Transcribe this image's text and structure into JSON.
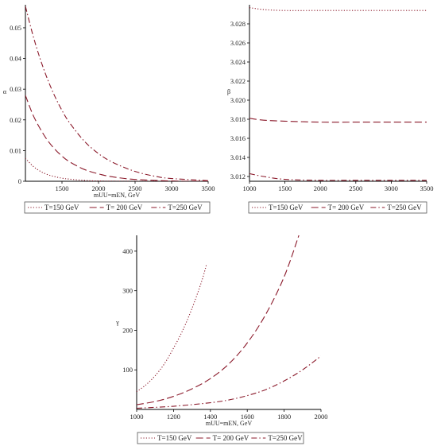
{
  "colors": {
    "curve": "#8b1a2b",
    "axis": "#000000",
    "legend_border": "#555555"
  },
  "legend_entries": [
    "T=150 GeV",
    "T= 200 GeV",
    "T=250 GeV"
  ],
  "chart_data": [
    {
      "type": "line",
      "xlabel": "mUU=mEN, GeV",
      "ylabel": "α",
      "xlim": [
        1000,
        3500
      ],
      "ylim": [
        0,
        0.0575
      ],
      "xticks": [
        1500,
        2000,
        2500,
        3000,
        3500
      ],
      "yticks": [
        0,
        0.01,
        0.02,
        0.03,
        0.04,
        0.05
      ],
      "yticklabels": [
        "0",
        "0.01",
        "0.02",
        "0.03",
        "0.04",
        "0.05"
      ],
      "legend_position": "below",
      "series": [
        {
          "name": "T=150 GeV",
          "style": "dotted",
          "x": [
            1000,
            1100,
            1200,
            1300,
            1400,
            1500,
            1600,
            1800,
            2000,
            2500,
            3000,
            3500
          ],
          "y": [
            0.0075,
            0.005,
            0.0033,
            0.0022,
            0.0015,
            0.001,
            0.0007,
            0.0003,
            0.0001,
            0.0,
            0.0,
            0.0
          ]
        },
        {
          "name": "T= 200 GeV",
          "style": "dashed",
          "x": [
            1000,
            1100,
            1200,
            1300,
            1400,
            1500,
            1600,
            1800,
            2000,
            2200,
            2500,
            3000,
            3500
          ],
          "y": [
            0.028,
            0.0218,
            0.0172,
            0.0134,
            0.0105,
            0.0082,
            0.0064,
            0.0039,
            0.0024,
            0.0014,
            0.0006,
            0.0001,
            0.0
          ]
        },
        {
          "name": "T=250 GeV",
          "style": "dashdot",
          "x": [
            1000,
            1100,
            1200,
            1300,
            1400,
            1500,
            1600,
            1800,
            2000,
            2200,
            2500,
            2800,
            3000,
            3500
          ],
          "y": [
            0.057,
            0.0478,
            0.04,
            0.0334,
            0.0278,
            0.0231,
            0.0192,
            0.0132,
            0.009,
            0.0061,
            0.0032,
            0.0015,
            0.0009,
            0.0002
          ]
        }
      ]
    },
    {
      "type": "line",
      "xlabel": "",
      "ylabel": "β",
      "xlim": [
        1000,
        3500
      ],
      "ylim": [
        3.0115,
        3.03
      ],
      "xticks": [
        1000,
        1500,
        2000,
        2500,
        3000,
        3500
      ],
      "yticks": [
        3.012,
        3.014,
        3.016,
        3.018,
        3.02,
        3.022,
        3.024,
        3.026,
        3.028
      ],
      "yticklabels": [
        "3.012",
        "3.014",
        "3.016",
        "3.018",
        "3.020",
        "3.022",
        "3.024",
        "3.026",
        "3.028"
      ],
      "legend_position": "below",
      "series": [
        {
          "name": "T=150 GeV",
          "style": "dotted",
          "x": [
            1000,
            1200,
            1500,
            2000,
            2500,
            3000,
            3500
          ],
          "y": [
            3.0297,
            3.0295,
            3.0294,
            3.0294,
            3.0294,
            3.0294,
            3.0294
          ]
        },
        {
          "name": "T= 200 GeV",
          "style": "dashed",
          "x": [
            1000,
            1200,
            1500,
            2000,
            2500,
            3000,
            3500
          ],
          "y": [
            3.0181,
            3.0179,
            3.0178,
            3.0177,
            3.0177,
            3.0177,
            3.0177
          ]
        },
        {
          "name": "T=250 GeV",
          "style": "dashdot",
          "x": [
            1000,
            1200,
            1500,
            2000,
            2500,
            3000,
            3500
          ],
          "y": [
            3.0123,
            3.012,
            3.0117,
            3.0116,
            3.0116,
            3.0116,
            3.0116
          ]
        }
      ]
    },
    {
      "type": "line",
      "xlabel": "mUU=mEN, GeV",
      "ylabel": "γ",
      "xlim": [
        1000,
        2000
      ],
      "ylim": [
        0,
        440
      ],
      "xticks": [
        1000,
        1200,
        1400,
        1600,
        1800,
        2000
      ],
      "yticks": [
        100,
        200,
        300,
        400
      ],
      "yticklabels": [
        "100",
        "200",
        "300",
        "400"
      ],
      "legend_position": "below",
      "series": [
        {
          "name": "T=150 GeV",
          "style": "dotted",
          "x": [
            1000,
            1050,
            1100,
            1150,
            1200,
            1250,
            1300,
            1350,
            1380
          ],
          "y": [
            45,
            62,
            85,
            115,
            155,
            200,
            255,
            320,
            368
          ]
        },
        {
          "name": "T= 200 GeV",
          "style": "dashed",
          "x": [
            1000,
            1100,
            1200,
            1300,
            1400,
            1500,
            1600,
            1700,
            1800,
            1880
          ],
          "y": [
            12,
            20,
            33,
            52,
            78,
            115,
            168,
            240,
            335,
            440
          ]
        },
        {
          "name": "T=250 GeV",
          "style": "dashdot",
          "x": [
            1000,
            1200,
            1400,
            1500,
            1600,
            1700,
            1800,
            1900,
            2000
          ],
          "y": [
            3,
            8,
            17,
            24,
            35,
            50,
            72,
            100,
            135
          ]
        }
      ]
    }
  ]
}
